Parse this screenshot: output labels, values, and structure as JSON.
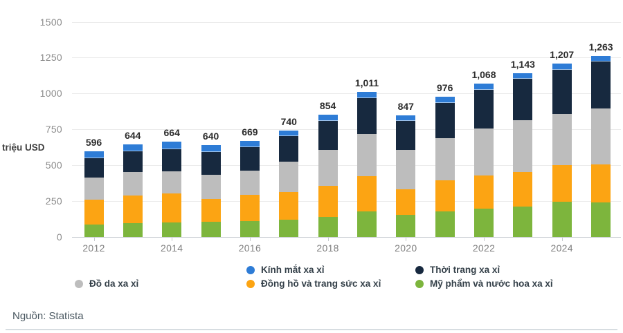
{
  "chart_data": {
    "type": "bar",
    "stacked": true,
    "unit_label": "triệu USD",
    "categories": [
      "2012",
      "2013",
      "2014",
      "2015",
      "2016",
      "2017",
      "2018",
      "2019",
      "2020",
      "2021",
      "2022",
      "2023",
      "2024",
      "2025"
    ],
    "x_axis_labels": [
      "2012",
      "2014",
      "2016",
      "2018",
      "2020",
      "2022",
      "2024"
    ],
    "totals": [
      596,
      644,
      664,
      640,
      669,
      740,
      854,
      1011,
      847,
      976,
      1068,
      1143,
      1207,
      1263
    ],
    "total_labels": [
      "596",
      "644",
      "664",
      "640",
      "669",
      "740",
      "854",
      "1,011",
      "847",
      "976",
      "1,068",
      "1,143",
      "1,207",
      "1,263"
    ],
    "series": [
      {
        "name": "Mỹ phẩm và nước hoa xa xỉ",
        "color": "#7db53d",
        "values": [
          89,
          97,
          102,
          105,
          113,
          118,
          142,
          176,
          153,
          177,
          197,
          213,
          245,
          242
        ]
      },
      {
        "name": "Đồng hồ và trang sức xa xỉ",
        "color": "#fca413",
        "values": [
          169,
          190,
          200,
          161,
          182,
          196,
          216,
          247,
          181,
          218,
          233,
          242,
          255,
          264
        ]
      },
      {
        "name": "Đồ da xa xỉ",
        "color": "#bdbdbd",
        "values": [
          156,
          165,
          157,
          169,
          168,
          210,
          247,
          295,
          274,
          294,
          328,
          359,
          355,
          392
        ]
      },
      {
        "name": "Thời trang xa xỉ",
        "color": "#17293f",
        "values": [
          137,
          145,
          154,
          157,
          161,
          177,
          205,
          249,
          199,
          246,
          266,
          290,
          311,
          323
        ]
      },
      {
        "name": "Kính mắt xa xỉ",
        "color": "#2e7cd6",
        "values": [
          45,
          47,
          51,
          48,
          45,
          39,
          44,
          44,
          40,
          41,
          44,
          39,
          41,
          42
        ]
      }
    ],
    "ylim": [
      0,
      1500
    ],
    "yticks": [
      0,
      250,
      500,
      750,
      1000,
      1250,
      1500
    ],
    "ytick_labels": [
      "0",
      "250",
      "500",
      "750",
      "1000",
      "1250",
      "1500"
    ],
    "grid": "horizontal",
    "legend_position": "bottom"
  },
  "legend": {
    "leather": {
      "label": "Đồ da xa xỉ",
      "color": "#bdbdbd"
    },
    "eyewear": {
      "label": "Kính mắt xa xỉ",
      "color": "#2e7cd6"
    },
    "watches_jewelry": {
      "label": "Đồng hồ và trang sức xa xỉ",
      "color": "#fca413"
    },
    "fashion": {
      "label": "Thời trang xa xỉ",
      "color": "#17293f"
    },
    "cosmetics_perfume": {
      "label": "Mỹ phẩm và nước hoa xa xỉ",
      "color": "#7db53d"
    }
  },
  "footer": {
    "source": "Nguồn: Statista"
  }
}
